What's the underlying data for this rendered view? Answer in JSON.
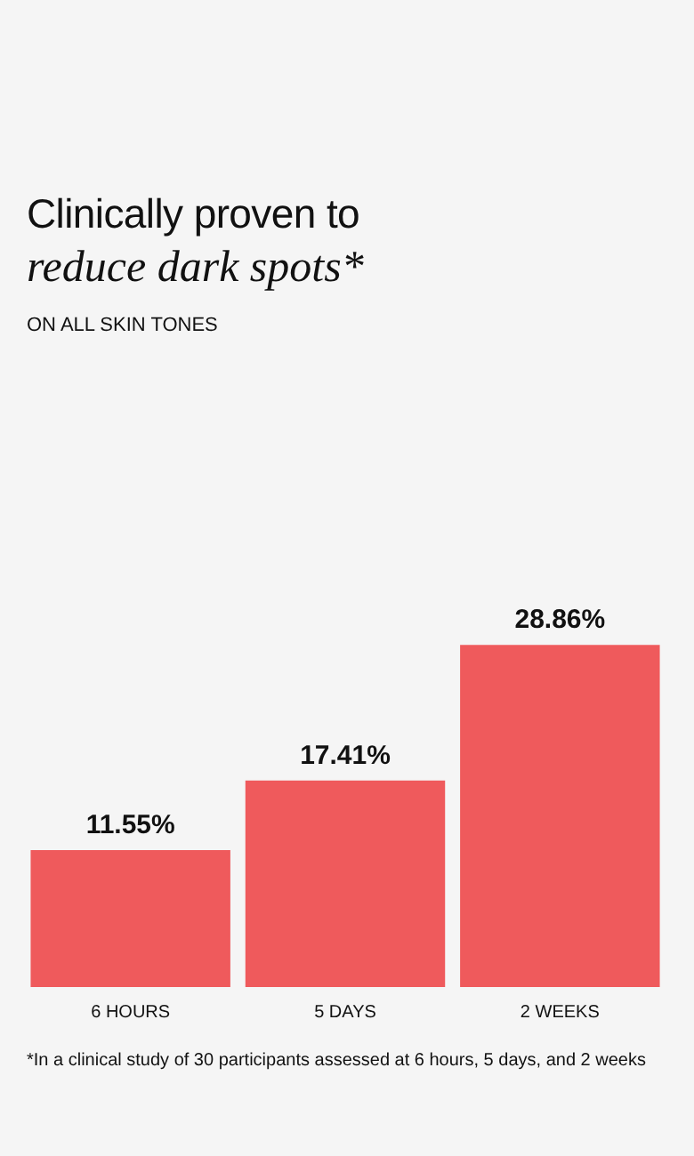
{
  "chart_data": {
    "type": "bar",
    "title": "Clinically proven to",
    "subtitle": "reduce dark spots*",
    "annotations": [
      "ON ALL SKIN TONES",
      "*In a clinical study of 30 participants assessed at 6 hours, 5 days, and 2 weeks"
    ],
    "categories": [
      "6 HOURS",
      "5 DAYS",
      "2 WEEKS"
    ],
    "values": [
      11.55,
      17.41,
      28.86
    ],
    "value_labels": [
      "11.55%",
      "17.41%",
      "28.86%"
    ],
    "color": "#ef5a5c",
    "grid": false,
    "legend": false
  }
}
